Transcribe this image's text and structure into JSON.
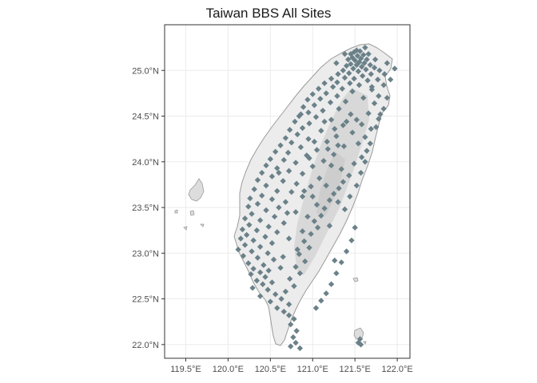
{
  "title": "Taiwan BBS All Sites",
  "map": {
    "x_ticks": [
      {
        "value": 119.5,
        "label": "119.5°E"
      },
      {
        "value": 120.0,
        "label": "120.0°E"
      },
      {
        "value": 120.5,
        "label": "120.5°E"
      },
      {
        "value": 121.0,
        "label": "121.0°E"
      },
      {
        "value": 121.5,
        "label": "121.5°E"
      },
      {
        "value": 122.0,
        "label": "122.0°E"
      }
    ],
    "y_ticks": [
      {
        "value": 22.0,
        "label": "22.0°N"
      },
      {
        "value": 22.5,
        "label": "22.5°N"
      },
      {
        "value": 23.0,
        "label": "23.0°N"
      },
      {
        "value": 23.5,
        "label": "23.5°N"
      },
      {
        "value": 24.0,
        "label": "24.0°N"
      },
      {
        "value": 24.5,
        "label": "24.5°N"
      },
      {
        "value": 25.0,
        "label": "25.0°N"
      }
    ],
    "x_range": [
      119.25,
      122.15
    ],
    "y_range": [
      21.85,
      25.5
    ],
    "grid": true,
    "colors": {
      "site": "#6b8189",
      "land_outline": "#9a9a9a",
      "land_fill": "#ececec",
      "mountain_fill": "#d8d8d8",
      "gridline": "#ebebeb"
    },
    "sites": [
      [
        121.52,
        25.22
      ],
      [
        121.56,
        25.21
      ],
      [
        121.49,
        25.2
      ],
      [
        121.45,
        25.18
      ],
      [
        121.6,
        25.17
      ],
      [
        121.53,
        25.16
      ],
      [
        121.47,
        25.14
      ],
      [
        121.57,
        25.13
      ],
      [
        121.64,
        25.12
      ],
      [
        121.42,
        25.12
      ],
      [
        121.5,
        25.11
      ],
      [
        121.55,
        25.09
      ],
      [
        121.61,
        25.08
      ],
      [
        121.45,
        25.07
      ],
      [
        121.52,
        25.06
      ],
      [
        121.68,
        25.06
      ],
      [
        121.4,
        25.05
      ],
      [
        121.58,
        25.04
      ],
      [
        121.73,
        25.03
      ],
      [
        121.48,
        25.02
      ],
      [
        121.63,
        25.01
      ],
      [
        121.36,
        25.0
      ],
      [
        121.54,
        24.99
      ],
      [
        121.79,
        25.0
      ],
      [
        121.43,
        24.97
      ],
      [
        121.69,
        24.96
      ],
      [
        121.3,
        24.96
      ],
      [
        121.59,
        24.94
      ],
      [
        121.85,
        24.96
      ],
      [
        121.38,
        24.92
      ],
      [
        121.49,
        24.91
      ],
      [
        121.22,
        24.91
      ],
      [
        121.77,
        24.9
      ],
      [
        121.65,
        24.89
      ],
      [
        121.29,
        24.87
      ],
      [
        121.44,
        24.86
      ],
      [
        121.14,
        24.86
      ],
      [
        121.55,
        24.84
      ],
      [
        121.84,
        24.84
      ],
      [
        121.24,
        24.82
      ],
      [
        121.35,
        24.8
      ],
      [
        121.07,
        24.8
      ],
      [
        121.7,
        24.79
      ],
      [
        121.47,
        24.77
      ],
      [
        121.16,
        24.75
      ],
      [
        121.0,
        24.74
      ],
      [
        121.29,
        24.72
      ],
      [
        121.78,
        24.72
      ],
      [
        121.6,
        24.7
      ],
      [
        121.09,
        24.69
      ],
      [
        120.94,
        24.68
      ],
      [
        121.39,
        24.66
      ],
      [
        121.21,
        24.65
      ],
      [
        121.73,
        24.64
      ],
      [
        121.02,
        24.62
      ],
      [
        120.89,
        24.6
      ],
      [
        121.31,
        24.58
      ],
      [
        121.84,
        24.58
      ],
      [
        121.12,
        24.56
      ],
      [
        120.95,
        24.54
      ],
      [
        121.66,
        24.53
      ],
      [
        121.45,
        24.52
      ],
      [
        120.84,
        24.5
      ],
      [
        121.04,
        24.49
      ],
      [
        121.78,
        24.47
      ],
      [
        121.22,
        24.46
      ],
      [
        120.79,
        24.44
      ],
      [
        120.96,
        24.42
      ],
      [
        121.58,
        24.41
      ],
      [
        121.36,
        24.4
      ],
      [
        120.88,
        24.37
      ],
      [
        121.69,
        24.36
      ],
      [
        120.73,
        24.35
      ],
      [
        121.1,
        24.34
      ],
      [
        121.47,
        24.32
      ],
      [
        120.82,
        24.3
      ],
      [
        121.28,
        24.28
      ],
      [
        121.62,
        24.27
      ],
      [
        120.68,
        24.26
      ],
      [
        120.95,
        24.25
      ],
      [
        121.17,
        24.22
      ],
      [
        120.75,
        24.21
      ],
      [
        121.54,
        24.2
      ],
      [
        120.62,
        24.18
      ],
      [
        121.37,
        24.17
      ],
      [
        120.86,
        24.16
      ],
      [
        121.05,
        24.13
      ],
      [
        121.64,
        24.12
      ],
      [
        120.56,
        24.11
      ],
      [
        120.71,
        24.1
      ],
      [
        121.25,
        24.08
      ],
      [
        120.93,
        24.07
      ],
      [
        121.58,
        24.05
      ],
      [
        120.5,
        24.03
      ],
      [
        120.66,
        24.02
      ],
      [
        121.13,
        24.01
      ],
      [
        120.8,
        23.99
      ],
      [
        121.49,
        23.98
      ],
      [
        120.45,
        23.96
      ],
      [
        121.0,
        23.95
      ],
      [
        120.58,
        23.93
      ],
      [
        121.34,
        23.92
      ],
      [
        120.72,
        23.9
      ],
      [
        120.4,
        23.88
      ],
      [
        120.88,
        23.87
      ],
      [
        121.43,
        23.85
      ],
      [
        120.52,
        23.84
      ],
      [
        121.08,
        23.82
      ],
      [
        120.35,
        23.8
      ],
      [
        120.65,
        23.79
      ],
      [
        121.36,
        23.78
      ],
      [
        120.81,
        23.76
      ],
      [
        120.45,
        23.74
      ],
      [
        120.98,
        23.73
      ],
      [
        121.31,
        23.71
      ],
      [
        120.31,
        23.7
      ],
      [
        120.58,
        23.68
      ],
      [
        120.75,
        23.67
      ],
      [
        121.25,
        23.65
      ],
      [
        120.4,
        23.63
      ],
      [
        120.88,
        23.62
      ],
      [
        120.26,
        23.6
      ],
      [
        120.52,
        23.59
      ],
      [
        121.2,
        23.58
      ],
      [
        120.68,
        23.56
      ],
      [
        120.35,
        23.54
      ],
      [
        121.05,
        23.53
      ],
      [
        120.24,
        23.51
      ],
      [
        120.6,
        23.5
      ],
      [
        121.14,
        23.49
      ],
      [
        120.45,
        23.47
      ],
      [
        120.8,
        23.45
      ],
      [
        120.28,
        23.43
      ],
      [
        121.1,
        23.41
      ],
      [
        120.55,
        23.4
      ],
      [
        120.2,
        23.38
      ],
      [
        120.38,
        23.36
      ],
      [
        121.02,
        23.35
      ],
      [
        120.66,
        23.33
      ],
      [
        120.25,
        23.31
      ],
      [
        120.48,
        23.29
      ],
      [
        121.06,
        23.28
      ],
      [
        120.17,
        23.26
      ],
      [
        120.34,
        23.25
      ],
      [
        120.58,
        23.23
      ],
      [
        120.98,
        23.21
      ],
      [
        120.22,
        23.2
      ],
      [
        120.44,
        23.18
      ],
      [
        120.15,
        23.16
      ],
      [
        120.3,
        23.14
      ],
      [
        120.9,
        23.13
      ],
      [
        120.52,
        23.11
      ],
      [
        120.2,
        23.09
      ],
      [
        120.38,
        23.07
      ],
      [
        120.96,
        23.06
      ],
      [
        120.12,
        23.04
      ],
      [
        120.28,
        23.02
      ],
      [
        120.47,
        23.0
      ],
      [
        120.84,
        22.99
      ],
      [
        120.18,
        22.97
      ],
      [
        120.35,
        22.95
      ],
      [
        120.54,
        22.93
      ],
      [
        120.91,
        22.91
      ],
      [
        120.24,
        22.89
      ],
      [
        120.42,
        22.87
      ],
      [
        120.8,
        22.85
      ],
      [
        120.3,
        22.83
      ],
      [
        120.48,
        22.81
      ],
      [
        120.38,
        22.79
      ],
      [
        120.85,
        22.78
      ],
      [
        120.27,
        22.77
      ],
      [
        120.44,
        22.74
      ],
      [
        120.73,
        22.72
      ],
      [
        120.34,
        22.7
      ],
      [
        120.52,
        22.68
      ],
      [
        120.41,
        22.66
      ],
      [
        120.78,
        22.64
      ],
      [
        120.29,
        22.62
      ],
      [
        120.47,
        22.6
      ],
      [
        120.68,
        22.58
      ],
      [
        120.56,
        22.55
      ],
      [
        120.38,
        22.53
      ],
      [
        120.63,
        22.5
      ],
      [
        120.5,
        22.47
      ],
      [
        120.72,
        22.44
      ],
      [
        120.58,
        22.4
      ],
      [
        120.66,
        22.36
      ],
      [
        120.72,
        22.32
      ],
      [
        120.78,
        22.28
      ],
      [
        120.74,
        22.22
      ],
      [
        120.81,
        22.15
      ],
      [
        120.77,
        22.08
      ],
      [
        120.8,
        22.02
      ],
      [
        120.74,
        21.98
      ],
      [
        120.85,
        21.96
      ],
      [
        121.04,
        22.4
      ],
      [
        121.1,
        22.48
      ],
      [
        121.16,
        22.56
      ],
      [
        121.22,
        22.66
      ],
      [
        121.28,
        22.78
      ],
      [
        121.34,
        22.9
      ],
      [
        121.4,
        23.02
      ],
      [
        121.46,
        23.14
      ],
      [
        121.5,
        23.28
      ],
      [
        121.38,
        23.48
      ],
      [
        121.44,
        23.62
      ],
      [
        121.52,
        23.74
      ],
      [
        121.57,
        23.88
      ],
      [
        121.62,
        24.0
      ],
      [
        121.68,
        24.2
      ],
      [
        121.75,
        24.38
      ],
      [
        121.8,
        24.52
      ],
      [
        121.88,
        24.7
      ],
      [
        121.92,
        24.9
      ],
      [
        121.97,
        25.02
      ],
      [
        121.88,
        25.08
      ],
      [
        121.74,
        25.12
      ],
      [
        121.66,
        25.18
      ],
      [
        121.38,
        25.18
      ],
      [
        121.28,
        25.08
      ],
      [
        121.62,
        25.25
      ],
      [
        121.4,
        24.44
      ],
      [
        121.26,
        24.36
      ],
      [
        121.18,
        24.14
      ],
      [
        121.02,
        24.22
      ],
      [
        120.96,
        24.04
      ],
      [
        121.22,
        23.96
      ],
      [
        121.16,
        23.74
      ],
      [
        121.0,
        23.62
      ],
      [
        120.94,
        23.4
      ],
      [
        120.88,
        23.24
      ],
      [
        120.72,
        23.16
      ],
      [
        120.65,
        22.96
      ],
      [
        120.62,
        22.84
      ],
      [
        121.52,
        24.46
      ],
      [
        121.7,
        24.82
      ],
      [
        121.14,
        24.44
      ],
      [
        120.86,
        24.52
      ],
      [
        121.3,
        24.18
      ],
      [
        120.9,
        23.68
      ],
      [
        120.6,
        23.88
      ],
      [
        120.7,
        23.44
      ],
      [
        120.82,
        23.04
      ],
      [
        121.2,
        23.3
      ],
      [
        121.3,
        23.56
      ],
      [
        121.26,
        22.92
      ],
      [
        121.56,
        22.06
      ],
      [
        121.54,
        22.02
      ],
      [
        121.57,
        22.0
      ]
    ]
  }
}
